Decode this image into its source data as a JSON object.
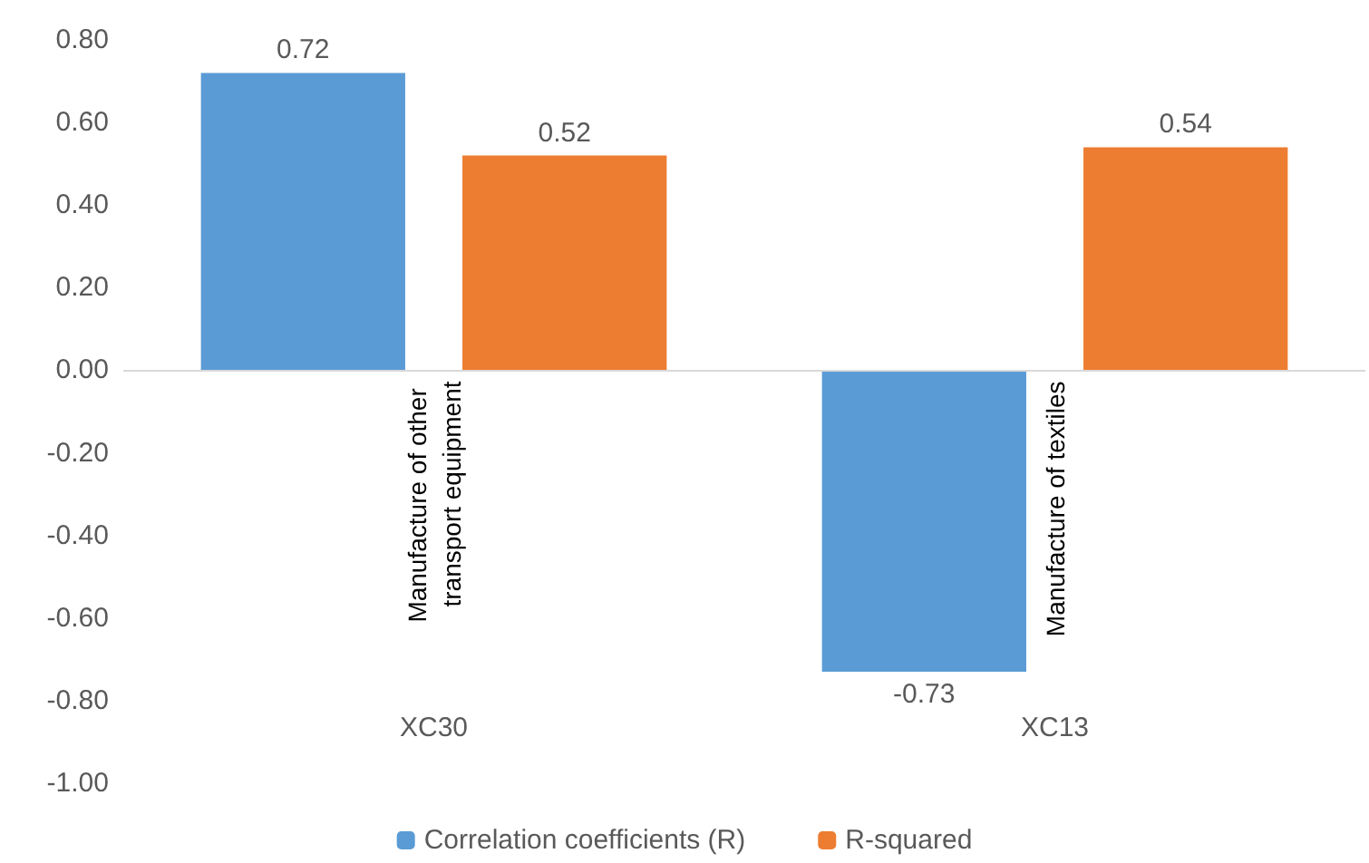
{
  "chart_data": {
    "type": "bar",
    "categories": [
      "XC30",
      "XC13"
    ],
    "series": [
      {
        "name": "Correlation coefficients (R)",
        "color": "#5b9bd5",
        "values": [
          0.72,
          -0.73
        ],
        "value_labels": [
          "0.72",
          "-0.73"
        ]
      },
      {
        "name": "R-squared",
        "color": "#ed7d31",
        "values": [
          0.52,
          0.54
        ],
        "value_labels": [
          "0.52",
          "0.54"
        ]
      }
    ],
    "ylim": [
      -1,
      0.8
    ],
    "yticks": [
      {
        "value": -1,
        "label": "-1.00"
      },
      {
        "value": -0.8,
        "label": "-0.80"
      },
      {
        "value": -0.6,
        "label": "-0.60"
      },
      {
        "value": -0.4,
        "label": "-0.40"
      },
      {
        "value": -0.2,
        "label": "-0.20"
      },
      {
        "value": 0,
        "label": "0.00"
      },
      {
        "value": 0.2,
        "label": "0.20"
      },
      {
        "value": 0.4,
        "label": "0.40"
      },
      {
        "value": 0.6,
        "label": "0.60"
      },
      {
        "value": 0.8,
        "label": "0.80"
      }
    ],
    "annotations": [
      "Manufacture of other transport equipment",
      "Manufacture of textiles"
    ],
    "ref_lines": [
      {
        "axis": "y",
        "value": 0,
        "color": "#d9d9d9"
      }
    ],
    "grid": false,
    "legend": "bottom"
  }
}
